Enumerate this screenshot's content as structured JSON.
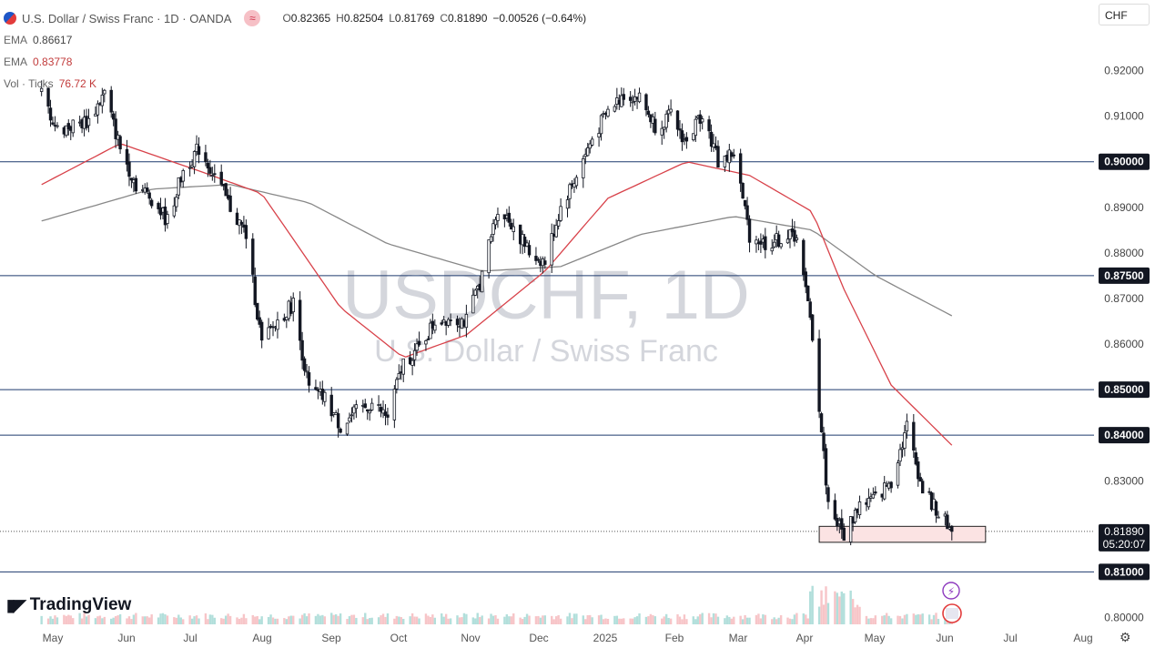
{
  "header": {
    "symbol_title": "U.S. Dollar / Swiss Franc · 1D · OANDA",
    "wave_icon": "≈",
    "ohlc": [
      {
        "k": "O",
        "v": "0.82365"
      },
      {
        "k": "H",
        "v": "0.82504"
      },
      {
        "k": "L",
        "v": "0.81769"
      },
      {
        "k": "C",
        "v": "0.81890"
      }
    ],
    "change": "−0.00526 (−0.64%)",
    "currency": "CHF"
  },
  "indicators": [
    {
      "label": "EMA",
      "value": "0.86617",
      "color": "#444444"
    },
    {
      "label": "EMA",
      "value": "0.83778",
      "color": "#c23b3b"
    },
    {
      "label": "Vol · Ticks",
      "value": "76.72 K",
      "color": "#c23b3b"
    }
  ],
  "watermark": {
    "symbol": "USDCHF, 1D",
    "name": "U.S. Dollar / Swiss Franc"
  },
  "brand": {
    "name": "TradingView"
  },
  "colors": {
    "up": "#131722",
    "down": "#131722",
    "ema50": "#d8424a",
    "ema200": "#888888",
    "level_line": "#1e3a6e",
    "zone_fill": "#fbe3e3",
    "zone_border": "#222222"
  },
  "chart_data": {
    "type": "candlestick",
    "title": "USDCHF, 1D",
    "y_axis": {
      "ticks": [
        "0.92000",
        "0.91000",
        "0.90000",
        "0.89000",
        "0.88000",
        "0.87500",
        "0.87000",
        "0.86000",
        "0.85000",
        "0.84000",
        "0.83000",
        "0.81890",
        "0.81000",
        "0.80000"
      ],
      "ylim": [
        0.7985,
        0.9295
      ]
    },
    "x_axis": {
      "ticks": [
        "May",
        "Jun",
        "Jul",
        "Aug",
        "Sep",
        "Oct",
        "Nov",
        "Dec",
        "2025",
        "Feb",
        "Mar",
        "Apr",
        "May",
        "Jun",
        "Jul",
        "Aug"
      ]
    },
    "horizontal_levels": [
      0.9,
      0.875,
      0.85,
      0.84,
      0.81
    ],
    "last_price": {
      "value": "0.81890",
      "countdown": "05:20:07"
    },
    "support_zone": {
      "low": 0.8165,
      "high": 0.82,
      "from": "2025-04-07",
      "to": "2025-06-20"
    },
    "price_anchors": [
      [
        "2024-04-26",
        0.915
      ],
      [
        "2024-05-03",
        0.907
      ],
      [
        "2024-05-10",
        0.908
      ],
      [
        "2024-05-17",
        0.909
      ],
      [
        "2024-05-24",
        0.915
      ],
      [
        "2024-05-31",
        0.903
      ],
      [
        "2024-06-07",
        0.895
      ],
      [
        "2024-06-14",
        0.892
      ],
      [
        "2024-06-21",
        0.887
      ],
      [
        "2024-06-28",
        0.898
      ],
      [
        "2024-07-05",
        0.903
      ],
      [
        "2024-07-12",
        0.897
      ],
      [
        "2024-07-19",
        0.89
      ],
      [
        "2024-07-26",
        0.884
      ],
      [
        "2024-08-02",
        0.86
      ],
      [
        "2024-08-09",
        0.865
      ],
      [
        "2024-08-16",
        0.869
      ],
      [
        "2024-08-23",
        0.85
      ],
      [
        "2024-08-30",
        0.848
      ],
      [
        "2024-09-06",
        0.842
      ],
      [
        "2024-09-13",
        0.845
      ],
      [
        "2024-09-20",
        0.847
      ],
      [
        "2024-09-27",
        0.844
      ],
      [
        "2024-10-04",
        0.856
      ],
      [
        "2024-10-11",
        0.859
      ],
      [
        "2024-10-18",
        0.865
      ],
      [
        "2024-10-25",
        0.866
      ],
      [
        "2024-11-01",
        0.865
      ],
      [
        "2024-11-08",
        0.875
      ],
      [
        "2024-11-15",
        0.89
      ],
      [
        "2024-11-22",
        0.886
      ],
      [
        "2024-11-29",
        0.88
      ],
      [
        "2024-12-06",
        0.878
      ],
      [
        "2024-12-13",
        0.89
      ],
      [
        "2024-12-20",
        0.897
      ],
      [
        "2024-12-27",
        0.905
      ],
      [
        "2025-01-03",
        0.911
      ],
      [
        "2025-01-10",
        0.915
      ],
      [
        "2025-01-17",
        0.914
      ],
      [
        "2025-01-24",
        0.908
      ],
      [
        "2025-01-31",
        0.91
      ],
      [
        "2025-02-07",
        0.904
      ],
      [
        "2025-02-14",
        0.911
      ],
      [
        "2025-02-21",
        0.9
      ],
      [
        "2025-02-28",
        0.902
      ],
      [
        "2025-03-07",
        0.884
      ],
      [
        "2025-03-14",
        0.882
      ],
      [
        "2025-03-21",
        0.883
      ],
      [
        "2025-03-28",
        0.884
      ],
      [
        "2025-04-04",
        0.862
      ],
      [
        "2025-04-11",
        0.825
      ],
      [
        "2025-04-18",
        0.818
      ],
      [
        "2025-04-25",
        0.825
      ],
      [
        "2025-05-02",
        0.826
      ],
      [
        "2025-05-09",
        0.83
      ],
      [
        "2025-05-16",
        0.842
      ],
      [
        "2025-05-23",
        0.828
      ],
      [
        "2025-05-30",
        0.823
      ],
      [
        "2025-06-05",
        0.8189
      ]
    ],
    "ema_fast_anchors": [
      [
        "2024-04-26",
        0.895
      ],
      [
        "2024-05-31",
        0.904
      ],
      [
        "2024-07-05",
        0.898
      ],
      [
        "2024-08-02",
        0.893
      ],
      [
        "2024-09-06",
        0.868
      ],
      [
        "2024-10-04",
        0.857
      ],
      [
        "2024-11-01",
        0.862
      ],
      [
        "2024-12-06",
        0.876
      ],
      [
        "2025-01-03",
        0.892
      ],
      [
        "2025-02-07",
        0.9
      ],
      [
        "2025-03-07",
        0.897
      ],
      [
        "2025-04-04",
        0.889
      ],
      [
        "2025-04-18",
        0.872
      ],
      [
        "2025-05-09",
        0.851
      ],
      [
        "2025-06-05",
        0.8378
      ]
    ],
    "ema_slow_anchors": [
      [
        "2024-04-26",
        0.887
      ],
      [
        "2024-06-14",
        0.894
      ],
      [
        "2024-07-19",
        0.895
      ],
      [
        "2024-08-23",
        0.891
      ],
      [
        "2024-09-27",
        0.882
      ],
      [
        "2024-11-08",
        0.876
      ],
      [
        "2024-12-13",
        0.877
      ],
      [
        "2025-01-17",
        0.884
      ],
      [
        "2025-02-28",
        0.888
      ],
      [
        "2025-04-04",
        0.885
      ],
      [
        "2025-05-02",
        0.875
      ],
      [
        "2025-06-05",
        0.8662
      ]
    ],
    "volume_note": "Vol · Ticks 76.72 K"
  }
}
